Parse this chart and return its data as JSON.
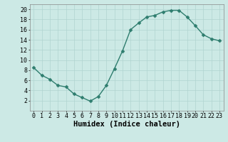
{
  "x": [
    0,
    1,
    2,
    3,
    4,
    5,
    6,
    7,
    8,
    9,
    10,
    11,
    12,
    13,
    14,
    15,
    16,
    17,
    18,
    19,
    20,
    21,
    22,
    23
  ],
  "y": [
    8.5,
    7.0,
    6.2,
    5.0,
    4.7,
    3.3,
    2.6,
    1.9,
    2.8,
    5.0,
    8.3,
    11.8,
    16.0,
    17.3,
    18.5,
    18.8,
    19.5,
    19.8,
    19.8,
    18.5,
    16.8,
    15.0,
    14.2,
    13.8
  ],
  "line_color": "#2e7d6e",
  "marker": "D",
  "marker_size": 2.5,
  "line_width": 1.0,
  "bg_color": "#cce9e5",
  "grid_color": "#b0d4d0",
  "xlabel": "Humidex (Indice chaleur)",
  "xlabel_fontsize": 7.5,
  "xlabel_bold": true,
  "xlim": [
    -0.5,
    23.5
  ],
  "ylim": [
    0,
    21
  ],
  "xticks": [
    0,
    1,
    2,
    3,
    4,
    5,
    6,
    7,
    8,
    9,
    10,
    11,
    12,
    13,
    14,
    15,
    16,
    17,
    18,
    19,
    20,
    21,
    22,
    23
  ],
  "yticks": [
    2,
    4,
    6,
    8,
    10,
    12,
    14,
    16,
    18,
    20
  ],
  "tick_fontsize": 6.0
}
